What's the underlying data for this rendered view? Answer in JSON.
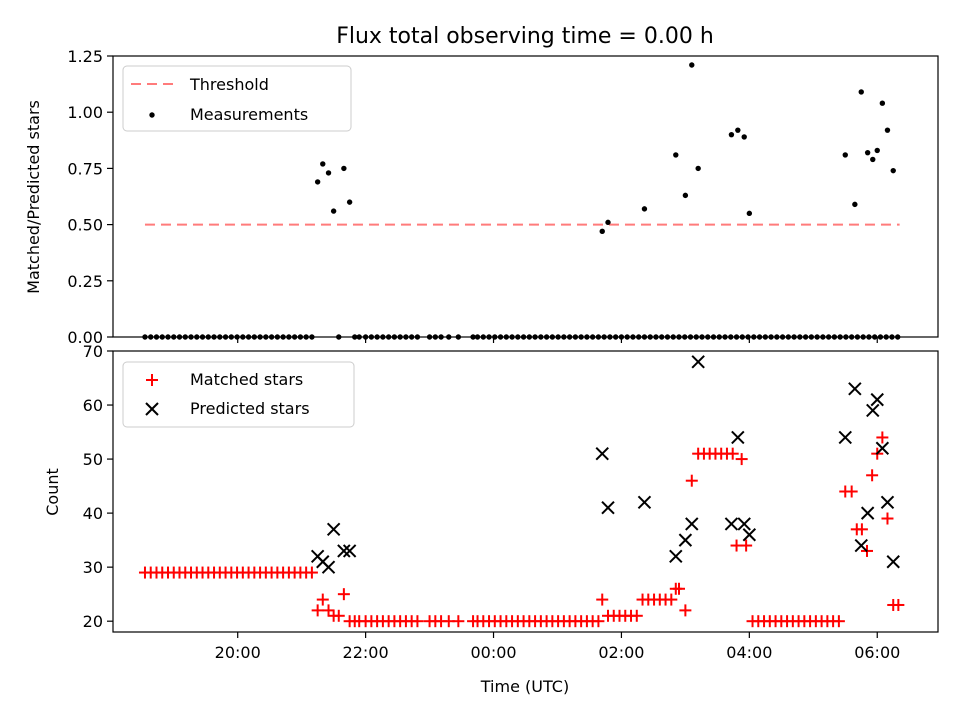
{
  "chart_data": [
    {
      "type": "scatter",
      "title": "Flux total observing time = 0.00 h",
      "xlabel": "",
      "ylabel": "Matched/Predicted stars",
      "ylim": [
        0,
        1.25
      ],
      "yticks": [
        "0.00",
        "0.25",
        "0.50",
        "0.75",
        "1.00",
        "1.25"
      ],
      "xlim_hours": [
        18.05,
        30.95
      ],
      "legend_position": "top-left",
      "threshold": {
        "name": "Threshold",
        "value": 0.5,
        "x_start": 18.55,
        "x_end": 30.35,
        "color": "#ff7b7b"
      },
      "series": [
        {
          "name": "Measurements",
          "color": "#000000",
          "x": [
            18.55,
            18.64,
            18.73,
            18.82,
            18.91,
            19.0,
            19.09,
            19.18,
            19.27,
            19.36,
            19.45,
            19.54,
            19.63,
            19.72,
            19.81,
            19.9,
            19.99,
            20.08,
            20.17,
            20.26,
            20.35,
            20.44,
            20.53,
            20.62,
            20.71,
            20.8,
            20.89,
            20.98,
            21.07,
            21.16,
            21.25,
            21.33,
            21.42,
            21.5,
            21.58,
            21.66,
            21.75,
            21.83,
            21.9,
            22.0,
            22.09,
            22.18,
            22.27,
            22.36,
            22.45,
            22.54,
            22.63,
            22.72,
            22.81,
            23.0,
            23.09,
            23.18,
            23.3,
            23.45,
            23.68,
            23.75,
            23.84,
            23.93,
            24.02,
            24.11,
            24.2,
            24.29,
            24.38,
            24.47,
            24.56,
            24.65,
            24.74,
            24.83,
            24.92,
            25.01,
            25.1,
            25.19,
            25.28,
            25.37,
            25.46,
            25.55,
            25.64,
            25.73,
            25.82,
            25.91,
            26.0,
            26.09,
            26.18,
            26.27,
            26.36,
            26.45,
            26.54,
            26.63,
            26.72,
            26.81,
            26.9,
            26.99,
            27.08,
            27.17,
            27.26,
            27.35,
            27.44,
            27.53,
            27.62,
            27.71,
            27.8,
            27.89,
            27.98,
            28.07,
            28.16,
            28.25,
            28.34,
            28.43,
            28.52,
            28.61,
            28.7,
            28.79,
            28.88,
            28.97,
            29.06,
            29.15,
            29.24,
            29.33,
            29.42,
            29.51,
            29.6,
            29.69,
            29.78,
            29.87,
            29.96,
            30.05,
            30.14,
            30.23,
            30.32,
            25.7,
            25.79,
            26.36,
            26.85,
            27.0,
            27.1,
            27.2,
            27.72,
            27.82,
            27.92,
            28.0,
            29.5,
            29.65,
            29.75,
            29.85,
            29.93,
            30.0,
            30.08,
            30.16,
            30.25
          ],
          "y": [
            0,
            0,
            0,
            0,
            0,
            0,
            0,
            0,
            0,
            0,
            0,
            0,
            0,
            0,
            0,
            0,
            0,
            0,
            0,
            0,
            0,
            0,
            0,
            0,
            0,
            0,
            0,
            0,
            0,
            0,
            0.69,
            0.77,
            0.73,
            0.56,
            0,
            0.75,
            0.6,
            0,
            0,
            0,
            0,
            0,
            0,
            0,
            0,
            0,
            0,
            0,
            0,
            0,
            0,
            0,
            0,
            0,
            0,
            0,
            0,
            0,
            0,
            0,
            0,
            0,
            0,
            0,
            0,
            0,
            0,
            0,
            0,
            0,
            0,
            0,
            0,
            0,
            0,
            0,
            0,
            0,
            0,
            0,
            0,
            0,
            0,
            0,
            0,
            0,
            0,
            0,
            0,
            0,
            0,
            0,
            0,
            0,
            0,
            0,
            0,
            0,
            0,
            0,
            0,
            0,
            0,
            0,
            0,
            0,
            0,
            0,
            0,
            0,
            0,
            0,
            0,
            0,
            0,
            0,
            0,
            0,
            0,
            0,
            0,
            0,
            0,
            0,
            0,
            0,
            0,
            0,
            0,
            0.47,
            0.51,
            0.57,
            0.81,
            0.63,
            1.21,
            0.75,
            0.9,
            0.92,
            0.89,
            0.55,
            0.81,
            0.59,
            1.09,
            0.82,
            0.79,
            0.83,
            1.04,
            0.92,
            0.74
          ]
        }
      ]
    },
    {
      "type": "scatter",
      "xlabel": "Time (UTC)",
      "ylabel": "Count",
      "ylim": [
        18,
        70
      ],
      "yticks": [
        "20",
        "30",
        "40",
        "50",
        "60",
        "70"
      ],
      "xticks": [
        "20:00",
        "22:00",
        "00:00",
        "02:00",
        "04:00",
        "06:00"
      ],
      "xtick_hours": [
        20,
        22,
        24,
        26,
        28,
        30
      ],
      "legend_position": "top-left",
      "series": [
        {
          "name": "Matched stars",
          "color": "#ff0000",
          "marker": "+",
          "x": [
            18.55,
            18.64,
            18.73,
            18.82,
            18.91,
            19.0,
            19.09,
            19.18,
            19.27,
            19.36,
            19.45,
            19.54,
            19.63,
            19.72,
            19.81,
            19.9,
            19.99,
            20.08,
            20.17,
            20.26,
            20.35,
            20.44,
            20.53,
            20.62,
            20.71,
            20.8,
            20.89,
            20.98,
            21.07,
            21.16,
            21.25,
            21.33,
            21.42,
            21.5,
            21.58,
            21.66,
            21.75,
            21.83,
            21.9,
            22.0,
            22.09,
            22.18,
            22.27,
            22.36,
            22.45,
            22.54,
            22.63,
            22.72,
            22.81,
            23.0,
            23.09,
            23.18,
            23.3,
            23.45,
            23.68,
            23.75,
            23.84,
            23.93,
            24.02,
            24.11,
            24.2,
            24.29,
            24.38,
            24.47,
            24.56,
            24.65,
            24.74,
            24.83,
            24.92,
            25.01,
            25.1,
            25.19,
            25.28,
            25.37,
            25.46,
            25.55,
            25.64,
            25.7,
            25.79,
            25.88,
            25.97,
            26.06,
            26.15,
            26.24,
            26.33,
            26.42,
            26.51,
            26.6,
            26.69,
            26.78,
            26.85,
            26.9,
            27.0,
            27.1,
            27.2,
            27.29,
            27.38,
            27.47,
            27.56,
            27.65,
            27.74,
            27.8,
            27.88,
            27.95,
            28.05,
            28.14,
            28.23,
            28.32,
            28.41,
            28.5,
            28.59,
            28.68,
            28.77,
            28.86,
            28.95,
            29.04,
            29.13,
            29.22,
            29.31,
            29.4,
            29.5,
            29.6,
            29.68,
            29.76,
            29.84,
            29.92,
            30.0,
            30.08,
            30.16,
            30.25,
            30.33
          ],
          "y": [
            29,
            29,
            29,
            29,
            29,
            29,
            29,
            29,
            29,
            29,
            29,
            29,
            29,
            29,
            29,
            29,
            29,
            29,
            29,
            29,
            29,
            29,
            29,
            29,
            29,
            29,
            29,
            29,
            29,
            29,
            22,
            24,
            22,
            21,
            21,
            25,
            20,
            20,
            20,
            20,
            20,
            20,
            20,
            20,
            20,
            20,
            20,
            20,
            20,
            20,
            20,
            20,
            20,
            20,
            20,
            20,
            20,
            20,
            20,
            20,
            20,
            20,
            20,
            20,
            20,
            20,
            20,
            20,
            20,
            20,
            20,
            20,
            20,
            20,
            20,
            20,
            20,
            24,
            21,
            21,
            21,
            21,
            21,
            21,
            24,
            24,
            24,
            24,
            24,
            24,
            26,
            26,
            22,
            46,
            51,
            51,
            51,
            51,
            51,
            51,
            51,
            34,
            50,
            34,
            20,
            20,
            20,
            20,
            20,
            20,
            20,
            20,
            20,
            20,
            20,
            20,
            20,
            20,
            20,
            20,
            44,
            44,
            37,
            37,
            33,
            47,
            51,
            54,
            39,
            23,
            23
          ]
        },
        {
          "name": "Predicted stars",
          "color": "#000000",
          "marker": "x",
          "x": [
            21.25,
            21.33,
            21.42,
            21.5,
            21.66,
            21.75,
            25.7,
            25.79,
            26.36,
            26.85,
            27.0,
            27.1,
            27.2,
            27.72,
            27.82,
            27.92,
            28.0,
            29.5,
            29.65,
            29.75,
            29.85,
            29.93,
            30.0,
            30.08,
            30.16,
            30.25
          ],
          "y": [
            32,
            31,
            30,
            37,
            33,
            33,
            51,
            41,
            42,
            32,
            35,
            38,
            68,
            38,
            54,
            38,
            36,
            54,
            63,
            34,
            40,
            59,
            61,
            52,
            42,
            31
          ]
        }
      ]
    }
  ]
}
